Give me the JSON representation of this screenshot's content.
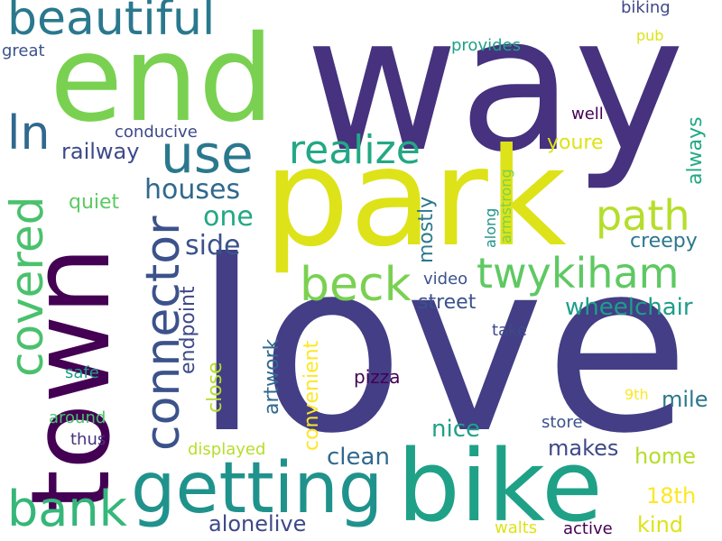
{
  "words": [
    {
      "text": "way",
      "color": "#46327e"
    },
    {
      "text": "love",
      "color": "#433e85"
    },
    {
      "text": "park",
      "color": "#dde318"
    },
    {
      "text": "end",
      "color": "#7ad151"
    },
    {
      "text": "town",
      "color": "#440154"
    },
    {
      "text": "bike",
      "color": "#1fa187"
    },
    {
      "text": "getting",
      "color": "#20928c"
    },
    {
      "text": "beautiful",
      "color": "#2a788e"
    },
    {
      "text": "connector",
      "color": "#3b528b"
    },
    {
      "text": "covered",
      "color": "#4ac16d"
    },
    {
      "text": "twykiham",
      "color": "#5ec962"
    },
    {
      "text": "beck",
      "color": "#7ad151"
    },
    {
      "text": "realize",
      "color": "#22a884"
    },
    {
      "text": "path",
      "color": "#b5de2b"
    },
    {
      "text": "use",
      "color": "#2a788e"
    },
    {
      "text": "ln",
      "color": "#31688e"
    },
    {
      "text": "bank",
      "color": "#35b779"
    },
    {
      "text": "houses",
      "color": "#31688e"
    },
    {
      "text": "railway",
      "color": "#3e4989"
    },
    {
      "text": "one",
      "color": "#22a884"
    },
    {
      "text": "side",
      "color": "#3b528b"
    },
    {
      "text": "endpoint",
      "color": "#3e4989"
    },
    {
      "text": "mostly",
      "color": "#2a788e"
    },
    {
      "text": "artwork",
      "color": "#31688e"
    },
    {
      "text": "always",
      "color": "#22a884"
    },
    {
      "text": "creepy",
      "color": "#2a788e"
    },
    {
      "text": "street",
      "color": "#3b528b"
    },
    {
      "text": "wheelchair",
      "color": "#1f9e89"
    },
    {
      "text": "close",
      "color": "#b5de2b"
    },
    {
      "text": "convenient",
      "color": "#fde725"
    },
    {
      "text": "youre",
      "color": "#dde318"
    },
    {
      "text": "quiet",
      "color": "#5ec962"
    },
    {
      "text": "clean",
      "color": "#31688e"
    },
    {
      "text": "nice",
      "color": "#1fa187"
    },
    {
      "text": "makes",
      "color": "#3e4989"
    },
    {
      "text": "home",
      "color": "#b5de2b"
    },
    {
      "text": "18th",
      "color": "#fde725"
    },
    {
      "text": "mile",
      "color": "#2a788e"
    },
    {
      "text": "kind",
      "color": "#dde318"
    },
    {
      "text": "alonelive",
      "color": "#3e4989"
    },
    {
      "text": "conducive",
      "color": "#3e4989"
    },
    {
      "text": "well",
      "color": "#440154"
    },
    {
      "text": "provides",
      "color": "#1fa187"
    },
    {
      "text": "biking",
      "color": "#3e4989"
    },
    {
      "text": "pub",
      "color": "#dde318"
    },
    {
      "text": "great",
      "color": "#3b528b"
    },
    {
      "text": "video",
      "color": "#3b528b"
    },
    {
      "text": "take",
      "color": "#3e4989"
    },
    {
      "text": "pizza",
      "color": "#440154"
    },
    {
      "text": "9th",
      "color": "#fde725"
    },
    {
      "text": "store",
      "color": "#3b528b"
    },
    {
      "text": "safe",
      "color": "#1f9e89"
    },
    {
      "text": "around",
      "color": "#4ac16d"
    },
    {
      "text": "thus",
      "color": "#46327e"
    },
    {
      "text": "displayed",
      "color": "#b5de2b"
    },
    {
      "text": "along",
      "color": "#20928c"
    },
    {
      "text": "armstrong",
      "color": "#7ad151"
    },
    {
      "text": "walts",
      "color": "#dde318"
    },
    {
      "text": "active",
      "color": "#440154"
    }
  ]
}
